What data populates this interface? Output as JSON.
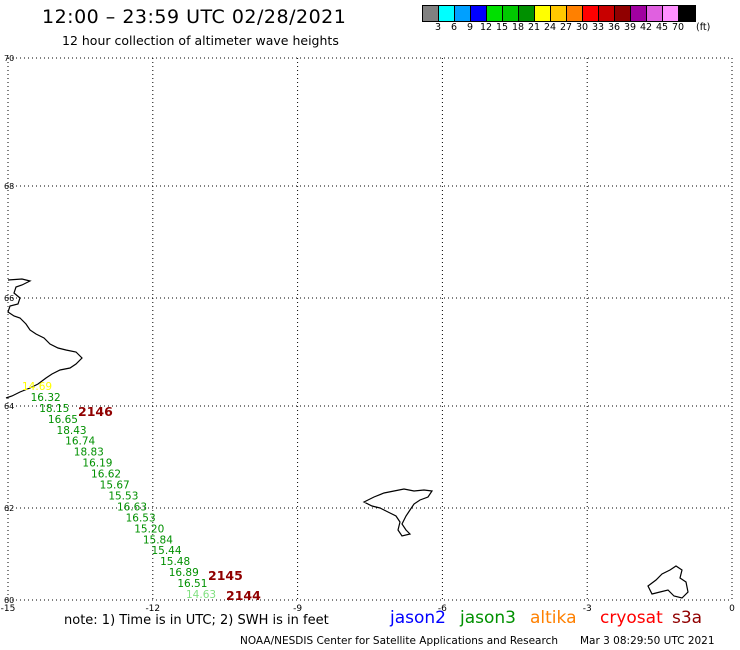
{
  "header": {
    "title": "12:00 – 23:59 UTC 02/28/2021",
    "subtitle": "12 hour collection of altimeter wave heights"
  },
  "colorbar": {
    "colors": [
      "#808080",
      "#00ffff",
      "#00a0ff",
      "#0000ff",
      "#00e000",
      "#00c800",
      "#009000",
      "#ffff00",
      "#ffc800",
      "#ff8000",
      "#ff0000",
      "#c80000",
      "#900000",
      "#a000a0",
      "#e060e0",
      "#ff90ff",
      "#000000"
    ],
    "labels": [
      "3",
      "6",
      "9",
      "12",
      "15",
      "18",
      "21",
      "24",
      "27",
      "30",
      "33",
      "36",
      "39",
      "42",
      "45",
      "70"
    ],
    "unit": "(ft)"
  },
  "map": {
    "lon_ticks": [
      "-15",
      "-12",
      "-9",
      "-6",
      "-3",
      "0"
    ],
    "lat_ticks": [
      "70",
      "68",
      "66",
      "64",
      "62",
      "60"
    ],
    "grid": true
  },
  "chart_data": {
    "type": "scatter",
    "xlabel": "",
    "ylabel": "",
    "xlim": [
      -15,
      0
    ],
    "ylim": [
      60,
      70
    ],
    "swh_values": [
      {
        "value": "14.69",
        "color": "#ffff00"
      },
      {
        "value": "16.32",
        "color": "#009000"
      },
      {
        "value": "18.15",
        "color": "#009000"
      },
      {
        "value": "16.65",
        "color": "#009000"
      },
      {
        "value": "18.43",
        "color": "#009000"
      },
      {
        "value": "16.74",
        "color": "#009000"
      },
      {
        "value": "18.83",
        "color": "#009000"
      },
      {
        "value": "16.19",
        "color": "#009000"
      },
      {
        "value": "16.62",
        "color": "#009000"
      },
      {
        "value": "15.67",
        "color": "#009000"
      },
      {
        "value": "15.53",
        "color": "#009000"
      },
      {
        "value": "16.63",
        "color": "#009000"
      },
      {
        "value": "16.53",
        "color": "#009000"
      },
      {
        "value": "15.20",
        "color": "#009000"
      },
      {
        "value": "15.84",
        "color": "#009000"
      },
      {
        "value": "15.44",
        "color": "#009000"
      },
      {
        "value": "15.48",
        "color": "#009000"
      },
      {
        "value": "16.89",
        "color": "#009000"
      },
      {
        "value": "16.51",
        "color": "#009000"
      },
      {
        "value": "14.63",
        "color": "#80e080"
      }
    ],
    "time_labels": [
      "2146",
      "2145",
      "2144"
    ]
  },
  "footer": {
    "note": "note:  1) Time is in UTC;  2) SWH is in feet",
    "legend": [
      {
        "name": "jason2",
        "color": "#0000ff"
      },
      {
        "name": "jason3",
        "color": "#009000"
      },
      {
        "name": "altika",
        "color": "#ff8000"
      },
      {
        "name": "cryosat",
        "color": "#ff0000"
      },
      {
        "name": "s3a",
        "color": "#900000"
      }
    ],
    "credit": "NOAA/NESDIS Center for Satellite Applications and Research",
    "timestamp": "Mar  3 08:29:50 UTC 2021"
  }
}
